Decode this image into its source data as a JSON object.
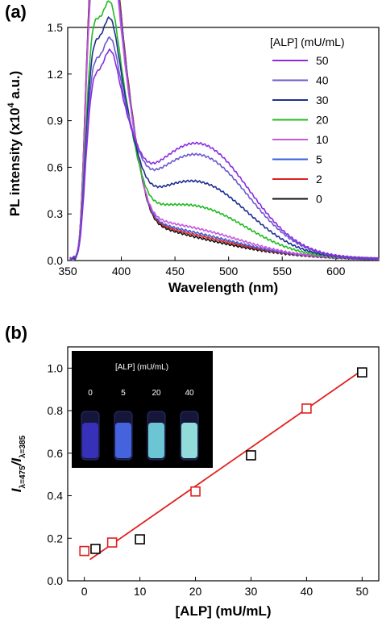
{
  "figure": {
    "panel_a_label": "(a)",
    "panel_b_label": "(b)"
  },
  "chart_data": [
    {
      "type": "line",
      "panel": "(a)",
      "xlabel": "Wavelength (nm)",
      "ylabel": "PL intensity (x10",
      "ylabel_sup": "4",
      "ylabel_suffix": " a.u.)",
      "xlim": [
        350,
        640
      ],
      "ylim": [
        0,
        1.5
      ],
      "xticks": [
        "350",
        "400",
        "450",
        "500",
        "550",
        "600"
      ],
      "yticks": [
        "0.0",
        "0.3",
        "0.6",
        "0.9",
        "1.2",
        "1.5"
      ],
      "legend_title": "[ALP] (mU/mL)",
      "legend_position": "top-right",
      "series": [
        {
          "name": "50",
          "color": "#8a2be2",
          "peak1": 0.7,
          "peak2": 0.68,
          "peak_broad": 0.68
        },
        {
          "name": "40",
          "color": "#6a5acd",
          "peak1": 0.77,
          "peak2": 0.75,
          "peak_broad": 0.63
        },
        {
          "name": "30",
          "color": "#1e2f8f",
          "peak1": 0.86,
          "peak2": 0.87,
          "peak_broad": 0.51
        },
        {
          "name": "20",
          "color": "#22bb22",
          "peak1": 0.98,
          "peak2": 0.97,
          "peak_broad": 0.4
        },
        {
          "name": "10",
          "color": "#cc55dd",
          "peak1": 1.3,
          "peak2": 1.26,
          "peak_broad": 0.3
        },
        {
          "name": "5",
          "color": "#3a5fdc",
          "peak1": 1.35,
          "peak2": 1.33,
          "peak_broad": 0.28
        },
        {
          "name": "2",
          "color": "#e02020",
          "peak1": 1.39,
          "peak2": 1.37,
          "peak_broad": 0.27
        },
        {
          "name": "0",
          "color": "#111111",
          "peak1": 1.4,
          "peak2": 1.38,
          "peak_broad": 0.26
        }
      ]
    },
    {
      "type": "scatter",
      "panel": "(b)",
      "xlabel": "[ALP] (mU/mL)",
      "ylabel_main": "I",
      "ylabel_sub1": "λ=475",
      "ylabel_sep": "/I",
      "ylabel_sub2": "λ=385",
      "xlim": [
        -3,
        53
      ],
      "ylim": [
        0,
        1.1
      ],
      "xticks": [
        "0",
        "10",
        "20",
        "30",
        "40",
        "50"
      ],
      "yticks": [
        "0.0",
        "0.2",
        "0.4",
        "0.6",
        "0.8",
        "1.0"
      ],
      "series": [
        {
          "name": "",
          "color": "#000000",
          "points": [
            [
              2,
              0.15
            ],
            [
              10,
              0.195
            ],
            [
              30,
              0.59
            ],
            [
              50,
              0.98
            ]
          ]
        },
        {
          "name": "",
          "color": "#e02020",
          "points": [
            [
              0,
              0.14
            ],
            [
              5,
              0.18
            ],
            [
              20,
              0.42
            ],
            [
              40,
              0.81
            ]
          ]
        }
      ],
      "fit_line": {
        "color": "#e02020",
        "x": [
          1,
          50
        ],
        "y": [
          0.1,
          0.99
        ]
      },
      "inset": {
        "title": "[ALP] (mU/mL)",
        "labels": [
          "0",
          "5",
          "20",
          "40"
        ],
        "vial_colors": [
          "#3b33c8",
          "#4a6cf0",
          "#74d8e4",
          "#9ef2ea"
        ]
      }
    }
  ]
}
